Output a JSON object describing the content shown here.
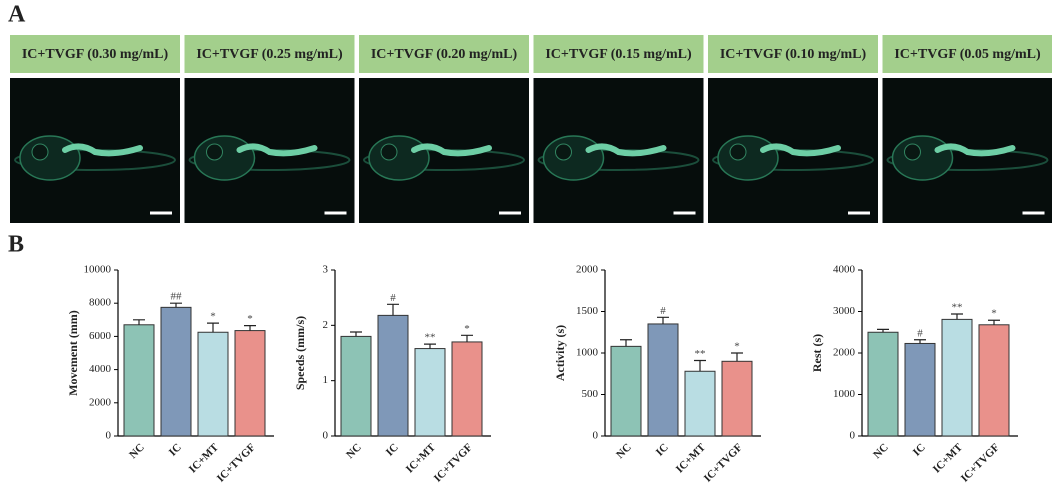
{
  "panel_a": {
    "label": "A",
    "headers": [
      "IC+TVGF (0.30 mg/mL)",
      "IC+TVGF (0.25 mg/mL)",
      "IC+TVGF (0.20 mg/mL)",
      "IC+TVGF (0.15 mg/mL)",
      "IC+TVGF (0.10 mg/mL)",
      "IC+TVGF (0.05 mg/mL)"
    ]
  },
  "panel_b": {
    "label": "B"
  },
  "chart_data": [
    {
      "type": "bar",
      "ylabel": "Movement (mm)",
      "categories": [
        "NC",
        "IC",
        "IC+MT",
        "IC+TVGF"
      ],
      "values": [
        6700,
        7750,
        6250,
        6350
      ],
      "errors": [
        300,
        250,
        550,
        300
      ],
      "colors": [
        "#8dc3b5",
        "#7f98b8",
        "#b9dde3",
        "#e9918b"
      ],
      "annotations": [
        null,
        "##",
        "*",
        "*"
      ],
      "ylim": [
        0,
        10000
      ],
      "yticks": [
        0,
        2000,
        4000,
        6000,
        8000,
        10000
      ]
    },
    {
      "type": "bar",
      "ylabel": "Speeds (mm/s)",
      "categories": [
        "NC",
        "IC",
        "IC+MT",
        "IC+TVGF"
      ],
      "values": [
        1.8,
        2.18,
        1.58,
        1.7
      ],
      "errors": [
        0.08,
        0.2,
        0.08,
        0.12
      ],
      "colors": [
        "#8dc3b5",
        "#7f98b8",
        "#b9dde3",
        "#e9918b"
      ],
      "annotations": [
        null,
        "#",
        "**",
        "*"
      ],
      "ylim": [
        0,
        3
      ],
      "yticks": [
        0,
        1,
        2,
        3
      ]
    },
    {
      "type": "bar",
      "ylabel": "Activity (s)",
      "categories": [
        "NC",
        "IC",
        "IC+MT",
        "IC+TVGF"
      ],
      "values": [
        1080,
        1350,
        780,
        900
      ],
      "errors": [
        80,
        80,
        130,
        100
      ],
      "colors": [
        "#8dc3b5",
        "#7f98b8",
        "#b9dde3",
        "#e9918b"
      ],
      "annotations": [
        null,
        "#",
        "**",
        "*"
      ],
      "ylim": [
        0,
        2000
      ],
      "yticks": [
        0,
        500,
        1000,
        1500,
        2000
      ]
    },
    {
      "type": "bar",
      "ylabel": "Rest (s)",
      "categories": [
        "NC",
        "IC",
        "IC+MT",
        "IC+TVGF"
      ],
      "values": [
        2500,
        2230,
        2810,
        2680
      ],
      "errors": [
        70,
        90,
        130,
        110
      ],
      "colors": [
        "#8dc3b5",
        "#7f98b8",
        "#b9dde3",
        "#e9918b"
      ],
      "annotations": [
        null,
        "#",
        "**",
        "*"
      ],
      "ylim": [
        0,
        4000
      ],
      "yticks": [
        0,
        1000,
        2000,
        3000,
        4000
      ]
    }
  ]
}
